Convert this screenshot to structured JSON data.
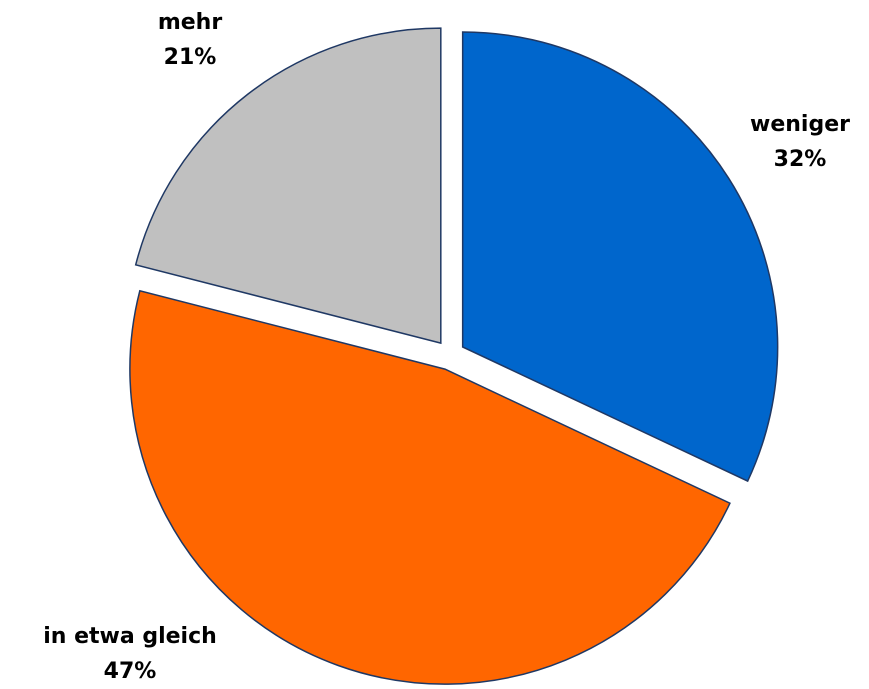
{
  "chart_data": {
    "type": "pie",
    "categories": [
      "weniger",
      "in etwa gleich",
      "mehr"
    ],
    "values": [
      32,
      47,
      21
    ],
    "value_labels": [
      "32%",
      "47%",
      "21%"
    ],
    "colors": [
      "#0066cc",
      "#ff6600",
      "#c0c0c0"
    ]
  }
}
